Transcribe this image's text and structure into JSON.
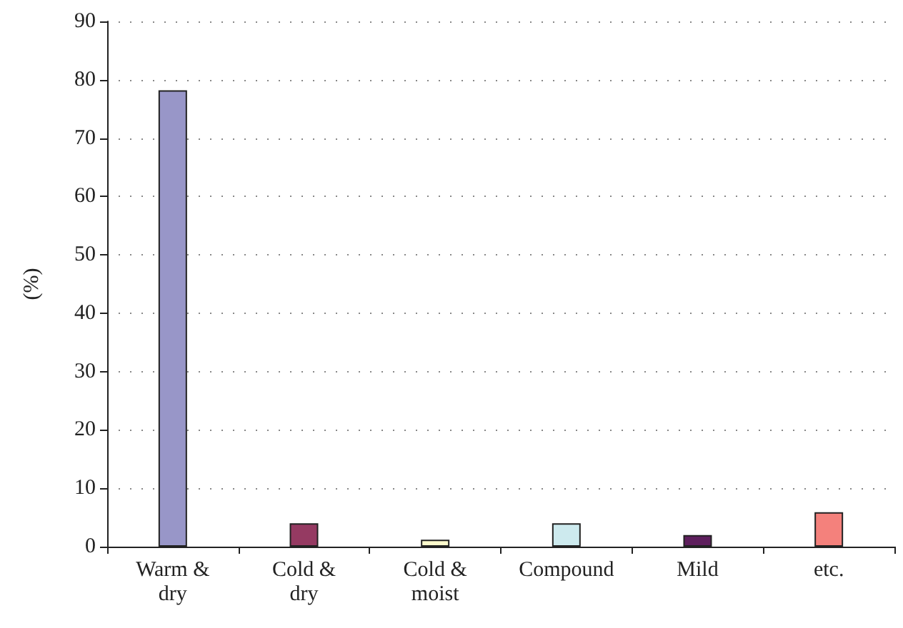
{
  "chart_data": {
    "type": "bar",
    "ylabel": "(%)",
    "categories": [
      "Warm &\ndry",
      "Cold &\ndry",
      "Cold &\nmoist",
      "Compound",
      "Mild",
      "etc."
    ],
    "values": [
      78.2,
      4,
      1.2,
      4,
      2,
      5.9
    ],
    "colors": [
      "#9896c8",
      "#953a62",
      "#fdfbcd",
      "#cdeaee",
      "#5e1f5d",
      "#f4817c"
    ],
    "ylim": [
      0,
      90
    ],
    "yticks": [
      0,
      10,
      20,
      30,
      40,
      50,
      60,
      70,
      80,
      90
    ],
    "grid": "y"
  }
}
